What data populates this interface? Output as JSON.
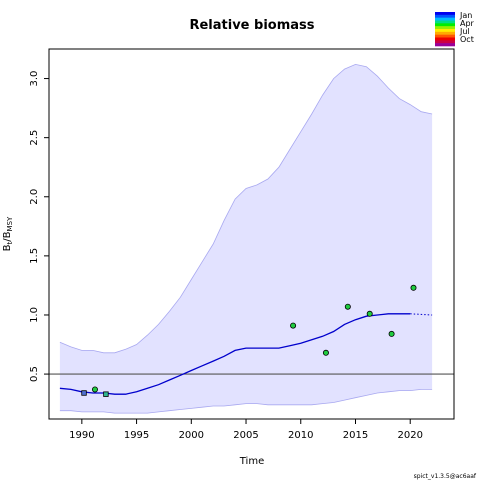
{
  "chart_data": {
    "type": "line",
    "title": "Relative biomass",
    "xlabel": "Time",
    "ylabel": {
      "base": "B",
      "sub1": "t",
      "slash": "/B",
      "sub2": "MSY"
    },
    "xlim": [
      1987,
      2024
    ],
    "ylim": [
      0.12,
      3.25
    ],
    "x_ticks": [
      1990,
      1995,
      2000,
      2005,
      2010,
      2015,
      2020
    ],
    "y_ticks": [
      0.5,
      1.0,
      1.5,
      2.0,
      2.5,
      3.0
    ],
    "y_tick_labels": [
      "0.5",
      "1.0",
      "1.5",
      "2.0",
      "2.5",
      "3.0"
    ],
    "reference_line": 0.5,
    "grid": false,
    "ci_upper": {
      "x": [
        1988,
        1989,
        1990,
        1991,
        1992,
        1993,
        1994,
        1995,
        1996,
        1997,
        1998,
        1999,
        2000,
        2001,
        2002,
        2003,
        2004,
        2005,
        2006,
        2007,
        2008,
        2009,
        2010,
        2011,
        2012,
        2013,
        2014,
        2015,
        2016,
        2017,
        2018,
        2019,
        2020,
        2021,
        2022
      ],
      "y": [
        0.77,
        0.73,
        0.7,
        0.7,
        0.68,
        0.68,
        0.71,
        0.75,
        0.83,
        0.92,
        1.03,
        1.15,
        1.3,
        1.45,
        1.6,
        1.8,
        1.98,
        2.07,
        2.1,
        2.15,
        2.25,
        2.4,
        2.55,
        2.7,
        2.86,
        3.0,
        3.08,
        3.12,
        3.1,
        3.02,
        2.92,
        2.83,
        2.78,
        2.72,
        2.7
      ]
    },
    "ci_lower": {
      "x": [
        1988,
        1989,
        1990,
        1991,
        1992,
        1993,
        1994,
        1995,
        1996,
        1997,
        1998,
        1999,
        2000,
        2001,
        2002,
        2003,
        2004,
        2005,
        2006,
        2007,
        2008,
        2009,
        2010,
        2011,
        2012,
        2013,
        2014,
        2015,
        2016,
        2017,
        2018,
        2019,
        2020,
        2021,
        2022
      ],
      "y": [
        0.19,
        0.19,
        0.18,
        0.18,
        0.18,
        0.17,
        0.17,
        0.17,
        0.17,
        0.18,
        0.19,
        0.2,
        0.21,
        0.22,
        0.23,
        0.23,
        0.24,
        0.25,
        0.25,
        0.24,
        0.24,
        0.24,
        0.24,
        0.24,
        0.25,
        0.26,
        0.28,
        0.3,
        0.32,
        0.34,
        0.35,
        0.36,
        0.36,
        0.37,
        0.37
      ]
    },
    "series": [
      {
        "x": [
          1988,
          1989,
          1990,
          1991,
          1992,
          1993,
          1994,
          1995,
          1996,
          1997,
          1998,
          1999,
          2000,
          2001,
          2002,
          2003,
          2004,
          2005,
          2006,
          2007,
          2008,
          2009,
          2010,
          2011,
          2012,
          2013,
          2014,
          2015,
          2016,
          2017,
          2018,
          2019,
          2020
        ],
        "y": [
          0.38,
          0.37,
          0.35,
          0.34,
          0.34,
          0.33,
          0.33,
          0.35,
          0.38,
          0.41,
          0.45,
          0.49,
          0.53,
          0.57,
          0.61,
          0.65,
          0.7,
          0.72,
          0.72,
          0.72,
          0.72,
          0.74,
          0.76,
          0.79,
          0.82,
          0.86,
          0.92,
          0.96,
          0.99,
          1.0,
          1.01,
          1.01,
          1.01
        ],
        "color": "#0000cc"
      },
      {
        "x": [
          2020,
          2021,
          2022
        ],
        "y": [
          1.01,
          1.005,
          1.0
        ],
        "color": "#0000cc",
        "style": "dotted"
      }
    ],
    "observations": [
      {
        "x": 1990.2,
        "y": 0.34,
        "shape": "square",
        "color": "#5070d0"
      },
      {
        "x": 1991.2,
        "y": 0.37,
        "shape": "circle",
        "color": "#20cc40"
      },
      {
        "x": 1992.2,
        "y": 0.33,
        "shape": "square",
        "color": "#30b890"
      },
      {
        "x": 2009.3,
        "y": 0.91,
        "shape": "circle",
        "color": "#20cc40"
      },
      {
        "x": 2012.3,
        "y": 0.68,
        "shape": "circle",
        "color": "#20cc40"
      },
      {
        "x": 2014.3,
        "y": 1.07,
        "shape": "circle",
        "color": "#20cc40"
      },
      {
        "x": 2016.3,
        "y": 1.01,
        "shape": "circle",
        "color": "#20cc40"
      },
      {
        "x": 2018.3,
        "y": 0.84,
        "shape": "circle",
        "color": "#20cc40"
      },
      {
        "x": 2020.3,
        "y": 1.23,
        "shape": "circle",
        "color": "#20cc40"
      }
    ],
    "colors": {
      "ci_fill": "#e2e2ff",
      "ci_border": "#a8a8f0",
      "reference_line": "#555555"
    },
    "legend": {
      "placement": "top-right",
      "labels": [
        "Jan",
        "Apr",
        "Jul",
        "Oct"
      ],
      "colors": [
        "#0000ee",
        "#0055ff",
        "#00bbff",
        "#00dd88",
        "#00ee00",
        "#99ee00",
        "#ffee00",
        "#ffaa00",
        "#ff5500",
        "#ee0000",
        "#cc0044",
        "#990099"
      ]
    },
    "footer": "spict_v1.3.5@ac6aaf"
  }
}
